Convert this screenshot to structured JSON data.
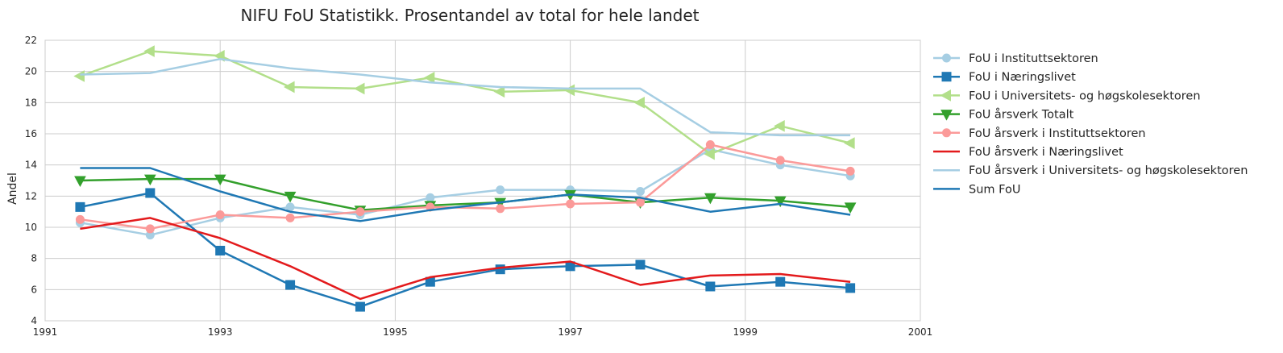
{
  "chart_data": {
    "type": "line",
    "title": "NIFU FoU Statistikk. Prosentandel av total for hele landet",
    "xlabel": "",
    "ylabel": "Andel",
    "xlim": [
      1991,
      2001
    ],
    "ylim": [
      4,
      22
    ],
    "xticks": [
      "1991",
      "1993",
      "1995",
      "1997",
      "1999",
      "2001"
    ],
    "yticks": [
      "4",
      "6",
      "8",
      "10",
      "12",
      "14",
      "16",
      "18",
      "20",
      "22"
    ],
    "grid": true,
    "legend_position": "outside-right",
    "series": [
      {
        "name": "FoU i Instituttsektoren",
        "color": "#a6cee3",
        "marker": "circle",
        "points": [
          [
            1991.4,
            10.3
          ],
          [
            1992.2,
            9.5
          ],
          [
            1993.0,
            10.6
          ],
          [
            1993.8,
            11.3
          ],
          [
            1994.6,
            10.8
          ],
          [
            1995.4,
            11.9
          ],
          [
            1996.2,
            12.4
          ],
          [
            1997.0,
            12.4
          ],
          [
            1997.8,
            12.3
          ],
          [
            1998.6,
            15.0
          ],
          [
            1999.4,
            14.0
          ],
          [
            2000.2,
            13.3
          ]
        ]
      },
      {
        "name": "FoU i Næringslivet",
        "color": "#1f78b4",
        "marker": "square",
        "points": [
          [
            1991.4,
            11.3
          ],
          [
            1992.2,
            12.2
          ],
          [
            1993.0,
            8.5
          ],
          [
            1993.8,
            6.3
          ],
          [
            1994.6,
            4.9
          ],
          [
            1995.4,
            6.5
          ],
          [
            1996.2,
            7.3
          ],
          [
            1997.0,
            7.5
          ],
          [
            1997.8,
            7.6
          ],
          [
            1998.6,
            6.2
          ],
          [
            1999.4,
            6.5
          ],
          [
            2000.2,
            6.1
          ]
        ]
      },
      {
        "name": "FoU i Universitets- og høgskolesektoren",
        "color": "#b2df8a",
        "marker": "triangle-left",
        "points": [
          [
            1991.4,
            19.7
          ],
          [
            1992.2,
            21.3
          ],
          [
            1993.0,
            21.0
          ],
          [
            1993.8,
            19.0
          ],
          [
            1994.6,
            18.9
          ],
          [
            1995.4,
            19.6
          ],
          [
            1996.2,
            18.7
          ],
          [
            1997.0,
            18.8
          ],
          [
            1997.8,
            18.0
          ],
          [
            1998.6,
            14.7
          ],
          [
            1999.4,
            16.5
          ],
          [
            2000.2,
            15.4
          ]
        ]
      },
      {
        "name": "FoU årsverk Totalt",
        "color": "#33a02c",
        "marker": "triangle-down",
        "points": [
          [
            1991.4,
            13.0
          ],
          [
            1992.2,
            13.1
          ],
          [
            1993.0,
            13.1
          ],
          [
            1993.8,
            12.0
          ],
          [
            1994.6,
            11.1
          ],
          [
            1995.4,
            11.4
          ],
          [
            1996.2,
            11.6
          ],
          [
            1997.0,
            12.1
          ],
          [
            1997.8,
            11.6
          ],
          [
            1998.6,
            11.9
          ],
          [
            1999.4,
            11.7
          ],
          [
            2000.2,
            11.3
          ]
        ]
      },
      {
        "name": "FoU årsverk i Instituttsektoren",
        "color": "#fb9a99",
        "marker": "octagon",
        "points": [
          [
            1991.4,
            10.5
          ],
          [
            1992.2,
            9.9
          ],
          [
            1993.0,
            10.8
          ],
          [
            1993.8,
            10.6
          ],
          [
            1994.6,
            11.0
          ],
          [
            1995.4,
            11.3
          ],
          [
            1996.2,
            11.2
          ],
          [
            1997.0,
            11.5
          ],
          [
            1997.8,
            11.6
          ],
          [
            1998.6,
            15.3
          ],
          [
            1999.4,
            14.3
          ],
          [
            2000.2,
            13.6
          ]
        ]
      },
      {
        "name": "FoU årsverk i Næringslivet",
        "color": "#e31a1c",
        "marker": "none",
        "points": [
          [
            1991.4,
            9.9
          ],
          [
            1992.2,
            10.6
          ],
          [
            1993.0,
            9.3
          ],
          [
            1993.8,
            7.5
          ],
          [
            1994.6,
            5.4
          ],
          [
            1995.4,
            6.8
          ],
          [
            1996.2,
            7.4
          ],
          [
            1997.0,
            7.8
          ],
          [
            1997.8,
            6.3
          ],
          [
            1998.6,
            6.9
          ],
          [
            1999.4,
            7.0
          ],
          [
            2000.2,
            6.5
          ]
        ]
      },
      {
        "name": "FoU årsverk i Universitets- og høgskolesektoren",
        "color": "#a6cee3",
        "marker": "none",
        "points": [
          [
            1991.4,
            19.8
          ],
          [
            1992.2,
            19.9
          ],
          [
            1993.0,
            20.8
          ],
          [
            1993.8,
            20.2
          ],
          [
            1994.6,
            19.8
          ],
          [
            1995.4,
            19.3
          ],
          [
            1996.2,
            19.0
          ],
          [
            1997.0,
            18.9
          ],
          [
            1997.8,
            18.9
          ],
          [
            1998.6,
            16.1
          ],
          [
            1999.4,
            15.9
          ],
          [
            2000.2,
            15.9
          ]
        ]
      },
      {
        "name": "Sum FoU",
        "color": "#1f78b4",
        "marker": "none",
        "points": [
          [
            1991.4,
            13.8
          ],
          [
            1992.2,
            13.8
          ],
          [
            1993.0,
            12.3
          ],
          [
            1993.8,
            11.0
          ],
          [
            1994.6,
            10.4
          ],
          [
            1995.4,
            11.1
          ],
          [
            1996.2,
            11.6
          ],
          [
            1997.0,
            12.1
          ],
          [
            1997.8,
            11.9
          ],
          [
            1998.6,
            11.0
          ],
          [
            1999.4,
            11.5
          ],
          [
            2000.2,
            10.8
          ]
        ]
      }
    ]
  }
}
